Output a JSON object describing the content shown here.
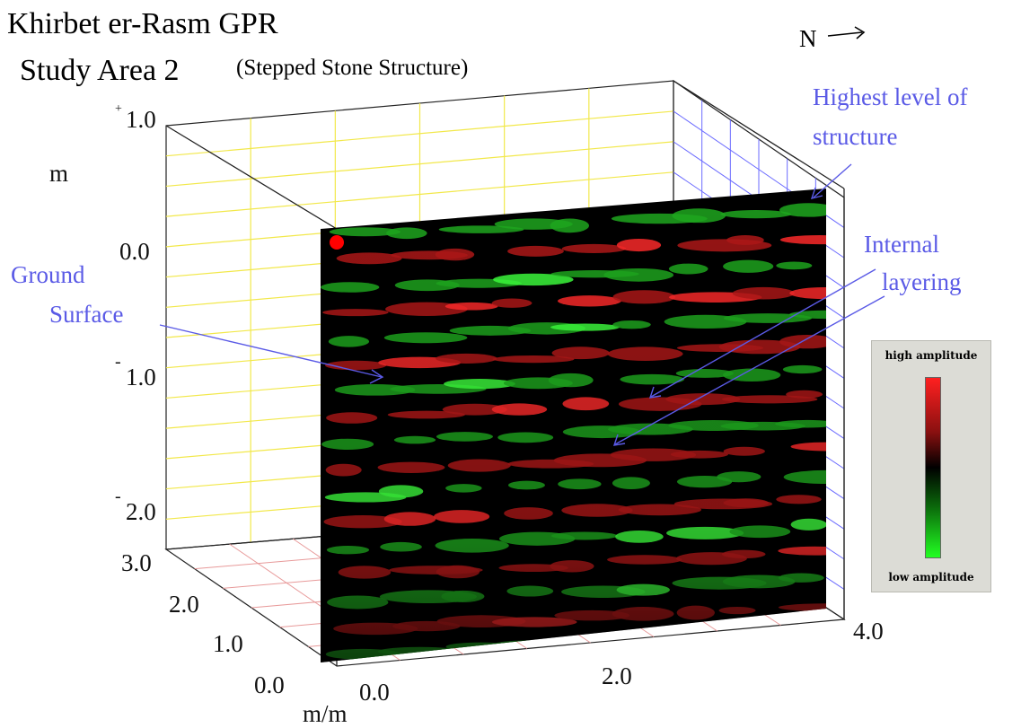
{
  "title": {
    "line1": "Khirbet er-Rasm GPR",
    "line2": "Study Area 2",
    "line2_paren": "(Stepped Stone Structure)"
  },
  "north_label": "N",
  "axis": {
    "depth_unit": "m",
    "depth_ticks": [
      {
        "sign": "+",
        "value": "1.0"
      },
      {
        "sign": "",
        "value": "0.0"
      },
      {
        "sign": "-",
        "value": "1.0"
      },
      {
        "sign": "-",
        "value": "2.0"
      }
    ],
    "y_ticks": [
      "3.0",
      "2.0",
      "1.0",
      "0.0"
    ],
    "x_ticks": [
      "0.0",
      "2.0",
      "4.0"
    ],
    "horizontal_unit": "m/m"
  },
  "annotations": {
    "highest_line1": "Highest level of",
    "highest_line2": "structure",
    "internal_line1": "Internal",
    "internal_line2": "layering",
    "ground_line1": "Ground",
    "ground_line2": "Surface"
  },
  "legend": {
    "high": "high amplitude",
    "low": "low amplitude",
    "colors": {
      "high": "#ff2020",
      "mid": "#000000",
      "low": "#22ff22"
    }
  },
  "colors": {
    "annotation": "#5a5ae6",
    "grid_yellow": "#f2e84a",
    "grid_red": "#e89a9a",
    "grid_blue": "#6b6bff",
    "marker": "#ff0000"
  }
}
